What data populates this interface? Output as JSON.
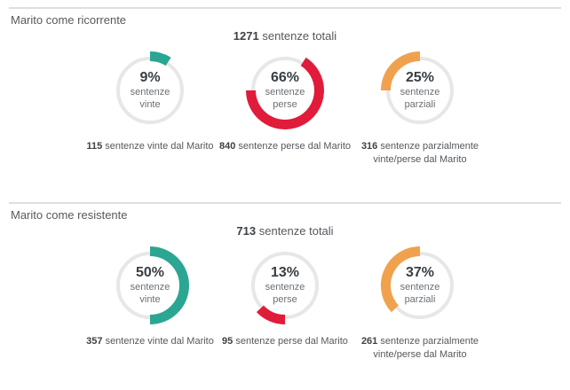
{
  "colors": {
    "ring": "#e7e7e7",
    "won": "#2aa693",
    "lost": "#e11b3a",
    "partial": "#f0a14e"
  },
  "chart_data": [
    {
      "type": "donut",
      "title": "Marito come ricorrente",
      "total": 1271,
      "total_label": "sentenze totali",
      "legend_position": "inside",
      "segments": [
        {
          "label": "sentenze vinte",
          "label_lines": [
            "sentenze",
            "vinte"
          ],
          "percent": 9,
          "percent_label": "9%",
          "start": 0,
          "count": 115,
          "caption": "sentenze vinte dal Marito",
          "color": "#2aa693"
        },
        {
          "label": "sentenze perse",
          "label_lines": [
            "sentenze",
            "perse"
          ],
          "percent": 66,
          "percent_label": "66%",
          "start": 9,
          "count": 840,
          "caption": "sentenze perse dal Marito",
          "color": "#e11b3a"
        },
        {
          "label": "sentenze parziali",
          "label_lines": [
            "sentenze",
            "parziali"
          ],
          "percent": 25,
          "percent_label": "25%",
          "start": 75,
          "count": 316,
          "caption": "sentenze parzialmente vinte/perse dal Marito",
          "color": "#f0a14e"
        }
      ]
    },
    {
      "type": "donut",
      "title": "Marito come resistente",
      "total": 713,
      "total_label": "sentenze totali",
      "legend_position": "inside",
      "segments": [
        {
          "label": "sentenze vinte",
          "label_lines": [
            "sentenze",
            "vinte"
          ],
          "percent": 50,
          "percent_label": "50%",
          "start": 0,
          "count": 357,
          "caption": "sentenze vinte dal Marito",
          "color": "#2aa693"
        },
        {
          "label": "sentenze perse",
          "label_lines": [
            "sentenze",
            "perse"
          ],
          "percent": 13,
          "percent_label": "13%",
          "start": 50,
          "count": 95,
          "caption": "sentenze perse dal Marito",
          "color": "#e11b3a"
        },
        {
          "label": "sentenze parziali",
          "label_lines": [
            "sentenze",
            "parziali"
          ],
          "percent": 37,
          "percent_label": "37%",
          "start": 63,
          "count": 261,
          "caption": "sentenze parzialmente vinte/perse dal Marito",
          "color": "#f0a14e"
        }
      ]
    }
  ]
}
